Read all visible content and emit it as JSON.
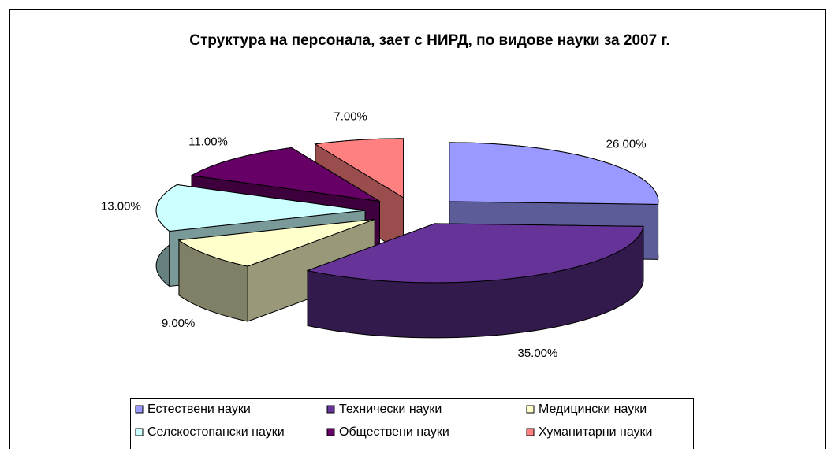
{
  "chart_data": {
    "type": "pie3d",
    "title": "Структура на персонала, зает с НИРД, по видове науки за 2007 г.",
    "categories": [
      "Естествени науки",
      "Технически науки",
      "Медицински науки",
      "Селскостопански науки",
      "Обществени науки",
      "Хуманитарни науки"
    ],
    "values": [
      26,
      35,
      9,
      13,
      11,
      7
    ],
    "value_labels": [
      "26.00%",
      "35.00%",
      "9.00%",
      "13.00%",
      "11.00%",
      "7.00%"
    ],
    "colors": [
      "#9999ff",
      "#663399",
      "#ffffcc",
      "#ccffff",
      "#660066",
      "#ff8080"
    ],
    "legend": "bottom"
  }
}
